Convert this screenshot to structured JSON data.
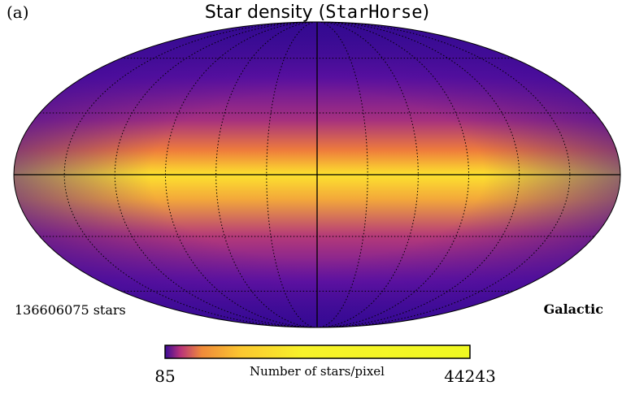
{
  "panel_label": "(a)",
  "title": {
    "prefix": "Star density (",
    "code": "StarHorse",
    "suffix": ")"
  },
  "map": {
    "star_count_note": "136606075 stars",
    "coordinate_system": "Galactic"
  },
  "colorbar": {
    "min_label": "85",
    "max_label": "44243",
    "label": "Number of stars/pixel"
  }
}
